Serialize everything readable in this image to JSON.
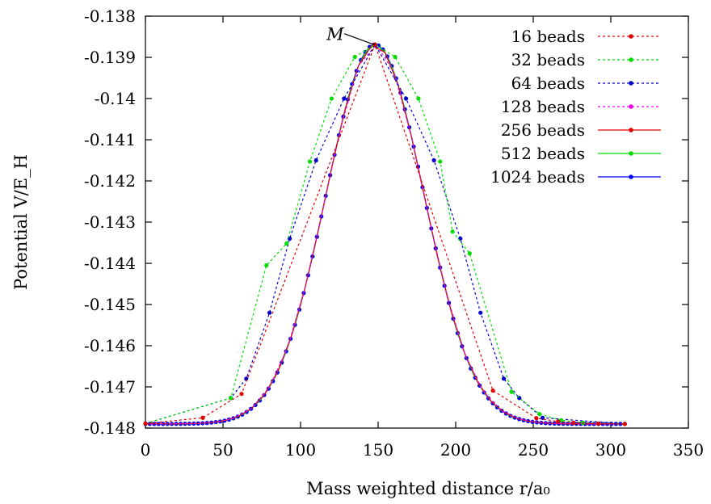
{
  "chart_data": {
    "type": "line",
    "title": "",
    "xlabel": "Mass weighted distance r/a₀",
    "ylabel": "Potential V/E_H",
    "xlim": [
      0,
      350
    ],
    "ylim": [
      -0.148,
      -0.138
    ],
    "x_ticks": [
      "0",
      "50",
      "100",
      "150",
      "200",
      "250",
      "300",
      "350"
    ],
    "y_ticks": [
      "-0.148",
      "-0.147",
      "-0.146",
      "-0.145",
      "-0.144",
      "-0.143",
      "-0.142",
      "-0.141",
      "-0.14",
      "-0.139",
      "-0.138"
    ],
    "grid": false,
    "legend_position": "top-right",
    "annotation": {
      "text": "M",
      "x": 148,
      "y": -0.1387
    },
    "series": [
      {
        "name": "16 beads",
        "color": "#e00000",
        "style": "dashed",
        "x": [
          0,
          37,
          62,
          148,
          224,
          252,
          266,
          276,
          292,
          309
        ],
        "y": [
          -0.14789,
          -0.14775,
          -0.14717,
          -0.13869,
          -0.14709,
          -0.14776,
          -0.14784,
          -0.14787,
          -0.14789,
          -0.1479
        ]
      },
      {
        "name": "32 beads",
        "color": "#00dd00",
        "style": "dashed",
        "x": [
          0,
          55,
          78,
          91,
          106,
          120,
          135,
          148,
          161,
          176,
          190,
          198,
          209,
          236,
          254,
          268,
          282,
          309
        ],
        "y": [
          -0.14789,
          -0.14727,
          -0.14405,
          -0.14352,
          -0.14153,
          -0.14,
          -0.13899,
          -0.13869,
          -0.13899,
          -0.14,
          -0.14153,
          -0.14323,
          -0.14376,
          -0.14712,
          -0.14766,
          -0.14781,
          -0.14787,
          -0.1479
        ]
      },
      {
        "name": "64 beads",
        "color": "#0000cc",
        "style": "dashed",
        "x": [
          0,
          55,
          65,
          80,
          93,
          110,
          128,
          148,
          168,
          186,
          203,
          216,
          231,
          241,
          256,
          309
        ],
        "y": [
          -0.14789,
          -0.14727,
          -0.1468,
          -0.1452,
          -0.1434,
          -0.1415,
          -0.14,
          -0.13869,
          -0.14,
          -0.1415,
          -0.1434,
          -0.1452,
          -0.1468,
          -0.14727,
          -0.14775,
          -0.1479
        ]
      },
      {
        "name": "128 beads",
        "color": "#ee00ee",
        "style": "dashed",
        "x": [],
        "y": []
      },
      {
        "name": "256 beads",
        "color": "#e00000",
        "style": "solid",
        "x": [],
        "y": []
      },
      {
        "name": "512 beads",
        "color": "#00dd00",
        "style": "solid",
        "x": [],
        "y": []
      },
      {
        "name": "1024 beads",
        "color": "#0000ff",
        "style": "solid",
        "x": [],
        "y": []
      }
    ],
    "dense_curve": {
      "description_units": "data",
      "baseline": -0.1479,
      "peak": -0.13869,
      "center": 148,
      "sigma": 31.5,
      "x_min": 0,
      "x_max": 309,
      "points": 110
    }
  }
}
